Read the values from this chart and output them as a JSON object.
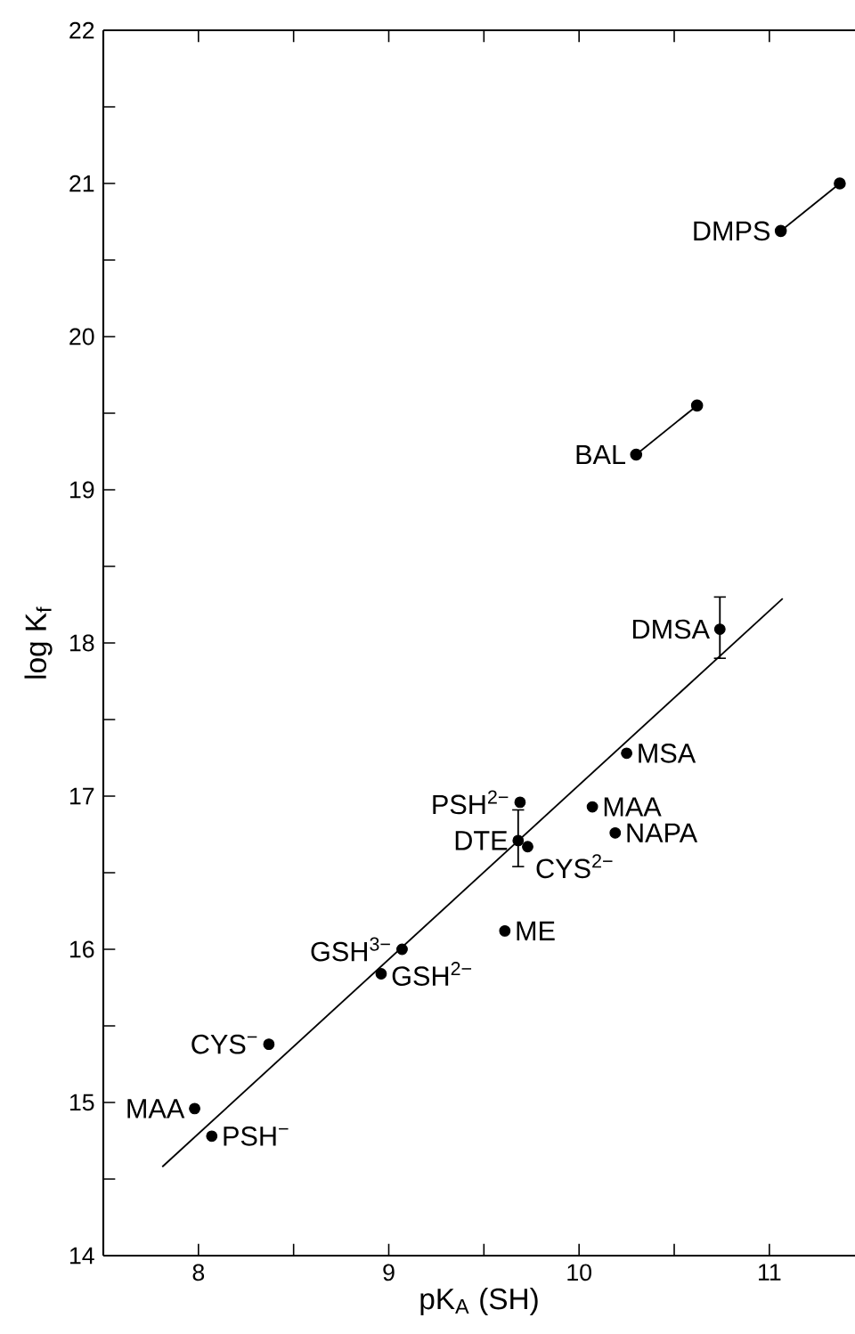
{
  "chart_data": {
    "type": "scatter",
    "xlabel": "pK$_{A}$ (SH)",
    "ylabel": "log K$_{f}$",
    "xlim": [
      7.5,
      11.45
    ],
    "ylim": [
      14,
      22
    ],
    "xticks": [
      8,
      {
        "value": 8.5,
        "label": null
      },
      9,
      {
        "value": 9.5,
        "label": null
      },
      10,
      {
        "value": 10.5,
        "label": null
      },
      11
    ],
    "yticks": [
      14,
      {
        "value": 14.5,
        "label": null
      },
      15,
      {
        "value": 15.5,
        "label": null
      },
      16,
      {
        "value": 16.5,
        "label": null
      },
      17,
      {
        "value": 17.5,
        "label": null
      },
      18,
      {
        "value": 18.5,
        "label": null
      },
      19,
      {
        "value": 19.5,
        "label": null
      },
      20,
      {
        "value": 20.5,
        "label": null
      },
      21,
      {
        "value": 21.5,
        "label": null
      },
      22
    ],
    "series": [
      {
        "type": "scatter",
        "color": "#000000",
        "marker": "circle",
        "x": [
          10.74,
          10.25,
          9.69,
          9.68,
          9.73,
          10.07,
          10.19,
          9.61,
          9.07,
          8.96,
          8.37,
          7.98,
          8.07
        ],
        "values": [
          18.09,
          17.28,
          16.96,
          16.71,
          16.67,
          16.93,
          16.76,
          16.12,
          16.0,
          15.84,
          15.38,
          14.96,
          14.78
        ],
        "errors": [
          [
            17.9,
            18.3
          ],
          null,
          null,
          [
            16.54,
            16.91
          ],
          null,
          null,
          null,
          null,
          null,
          null,
          null,
          null,
          null
        ]
      },
      {
        "type": "line",
        "color": "#000000",
        "marker": "none",
        "x": [
          7.81,
          11.07
        ],
        "values": [
          14.58,
          18.29
        ]
      },
      {
        "type": "line",
        "color": "#000000",
        "marker": "circle",
        "x": [
          11.37,
          11.06
        ],
        "values": [
          21.0,
          20.69
        ]
      },
      {
        "type": "line",
        "color": "#000000",
        "marker": "circle",
        "x": [
          10.62,
          10.3
        ],
        "values": [
          19.55,
          19.23
        ]
      }
    ],
    "annotations": [
      {
        "text": "DMPS",
        "x": 11.06,
        "y": 20.69
      },
      {
        "text": "BAL",
        "x": 10.3,
        "y": 19.23
      },
      {
        "text": "DMSA",
        "x": 10.74,
        "y": 18.09
      },
      {
        "text": "MSA",
        "x": 10.25,
        "y": 17.28
      },
      {
        "text": "PSH$^{2−}$",
        "x": 9.69,
        "y": 16.96
      },
      {
        "text": "DTE",
        "x": 9.68,
        "y": 16.71
      },
      {
        "text": "MAA",
        "x": 10.07,
        "y": 16.93
      },
      {
        "text": "NAPA",
        "x": 10.19,
        "y": 16.76
      },
      {
        "text": "CYS$^{2−}$",
        "x": 9.73,
        "y": 16.67
      },
      {
        "text": "ME",
        "x": 9.61,
        "y": 16.12
      },
      {
        "text": "GSH$^{3−}$",
        "x": 9.07,
        "y": 16.0
      },
      {
        "text": "GSH$^{2−}$",
        "x": 8.96,
        "y": 15.84
      },
      {
        "text": "CYS$^{−}$",
        "x": 8.37,
        "y": 15.38
      },
      {
        "text": "MAA",
        "x": 7.98,
        "y": 14.96
      },
      {
        "text": "PSH$^{−}$",
        "x": 8.07,
        "y": 14.78
      }
    ]
  }
}
